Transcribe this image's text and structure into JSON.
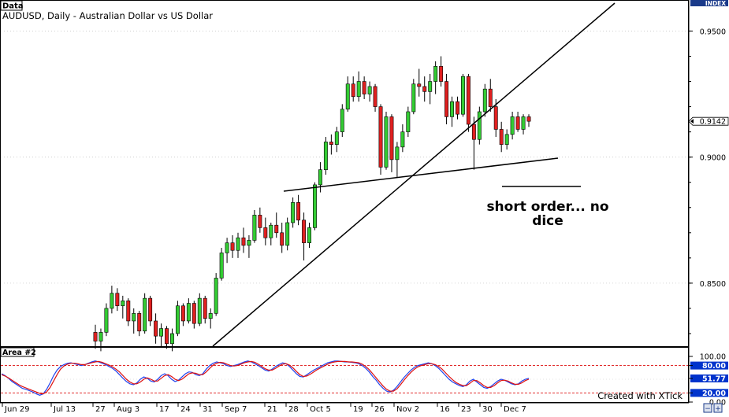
{
  "window": {
    "data_tab": "Data",
    "area_tab": "Area #2",
    "index_label": "INDEX",
    "watermark": "Created with XTick"
  },
  "colors": {
    "up_candle": "#33cc33",
    "down_candle": "#e02020",
    "stoch_k": "#2244ee",
    "stoch_d": "#dd1111",
    "level_line": "#dd1111",
    "price_tag": "#000000",
    "scale_blue_tag": "#0033cc"
  },
  "chart_data": [
    {
      "type": "candlestick",
      "title": "AUDUSD, Daily - Australian Dollar vs US Dollar",
      "ylim": [
        0.825,
        0.962
      ],
      "y_ticks": [
        "0.9500",
        "0.9000",
        "0.8500"
      ],
      "last_price_label": "0.9142",
      "x_tick_labels": [
        "Jun 29",
        "Jul 13",
        "27",
        "Aug 3",
        "17",
        "24",
        "31",
        "Sep 7",
        "21",
        "28",
        "Oct 5",
        "19",
        "26",
        "Nov 2",
        "16",
        "23",
        "30",
        "Dec 7"
      ],
      "candles": [
        [
          0.8305,
          0.8335,
          0.824,
          0.827
        ],
        [
          0.827,
          0.832,
          0.823,
          0.8305
        ],
        [
          0.8305,
          0.842,
          0.829,
          0.84
        ],
        [
          0.84,
          0.849,
          0.838,
          0.846
        ],
        [
          0.846,
          0.848,
          0.839,
          0.841
        ],
        [
          0.841,
          0.845,
          0.836,
          0.843
        ],
        [
          0.843,
          0.844,
          0.833,
          0.835
        ],
        [
          0.835,
          0.84,
          0.83,
          0.838
        ],
        [
          0.838,
          0.839,
          0.829,
          0.831
        ],
        [
          0.831,
          0.846,
          0.83,
          0.844
        ],
        [
          0.844,
          0.845,
          0.833,
          0.835
        ],
        [
          0.835,
          0.838,
          0.826,
          0.829
        ],
        [
          0.829,
          0.834,
          0.825,
          0.832
        ],
        [
          0.832,
          0.833,
          0.824,
          0.826
        ],
        [
          0.826,
          0.832,
          0.823,
          0.83
        ],
        [
          0.83,
          0.843,
          0.829,
          0.841
        ],
        [
          0.841,
          0.842,
          0.833,
          0.835
        ],
        [
          0.835,
          0.844,
          0.834,
          0.842
        ],
        [
          0.842,
          0.843,
          0.832,
          0.834
        ],
        [
          0.834,
          0.846,
          0.833,
          0.844
        ],
        [
          0.844,
          0.845,
          0.834,
          0.836
        ],
        [
          0.836,
          0.84,
          0.832,
          0.838
        ],
        [
          0.838,
          0.854,
          0.837,
          0.852
        ],
        [
          0.852,
          0.864,
          0.851,
          0.862
        ],
        [
          0.862,
          0.868,
          0.858,
          0.866
        ],
        [
          0.866,
          0.869,
          0.86,
          0.863
        ],
        [
          0.863,
          0.87,
          0.86,
          0.868
        ],
        [
          0.868,
          0.872,
          0.862,
          0.865
        ],
        [
          0.865,
          0.869,
          0.86,
          0.867
        ],
        [
          0.867,
          0.879,
          0.866,
          0.877
        ],
        [
          0.877,
          0.88,
          0.87,
          0.872
        ],
        [
          0.872,
          0.876,
          0.865,
          0.868
        ],
        [
          0.868,
          0.874,
          0.865,
          0.873
        ],
        [
          0.873,
          0.878,
          0.868,
          0.87
        ],
        [
          0.87,
          0.874,
          0.862,
          0.865
        ],
        [
          0.865,
          0.876,
          0.863,
          0.874
        ],
        [
          0.874,
          0.884,
          0.872,
          0.882
        ],
        [
          0.882,
          0.885,
          0.873,
          0.875
        ],
        [
          0.875,
          0.878,
          0.859,
          0.866
        ],
        [
          0.866,
          0.874,
          0.864,
          0.872
        ],
        [
          0.872,
          0.89,
          0.871,
          0.889
        ],
        [
          0.889,
          0.898,
          0.886,
          0.895
        ],
        [
          0.895,
          0.908,
          0.893,
          0.906
        ],
        [
          0.906,
          0.909,
          0.901,
          0.905
        ],
        [
          0.905,
          0.912,
          0.902,
          0.91
        ],
        [
          0.91,
          0.921,
          0.908,
          0.919
        ],
        [
          0.919,
          0.932,
          0.918,
          0.929
        ],
        [
          0.929,
          0.932,
          0.922,
          0.924
        ],
        [
          0.924,
          0.934,
          0.922,
          0.93
        ],
        [
          0.93,
          0.932,
          0.923,
          0.925
        ],
        [
          0.925,
          0.93,
          0.922,
          0.928
        ],
        [
          0.928,
          0.929,
          0.918,
          0.92
        ],
        [
          0.92,
          0.921,
          0.893,
          0.896
        ],
        [
          0.896,
          0.918,
          0.895,
          0.916
        ],
        [
          0.916,
          0.917,
          0.894,
          0.899
        ],
        [
          0.899,
          0.906,
          0.892,
          0.904
        ],
        [
          0.904,
          0.913,
          0.902,
          0.91
        ],
        [
          0.91,
          0.92,
          0.908,
          0.918
        ],
        [
          0.918,
          0.931,
          0.917,
          0.929
        ],
        [
          0.929,
          0.935,
          0.924,
          0.928
        ],
        [
          0.928,
          0.932,
          0.922,
          0.926
        ],
        [
          0.926,
          0.933,
          0.921,
          0.93
        ],
        [
          0.93,
          0.938,
          0.925,
          0.936
        ],
        [
          0.936,
          0.94,
          0.928,
          0.93
        ],
        [
          0.93,
          0.933,
          0.913,
          0.916
        ],
        [
          0.916,
          0.924,
          0.912,
          0.922
        ],
        [
          0.922,
          0.924,
          0.915,
          0.917
        ],
        [
          0.917,
          0.933,
          0.916,
          0.932
        ],
        [
          0.932,
          0.933,
          0.91,
          0.913
        ],
        [
          0.913,
          0.916,
          0.895,
          0.907
        ],
        [
          0.907,
          0.92,
          0.905,
          0.918
        ],
        [
          0.918,
          0.929,
          0.916,
          0.927
        ],
        [
          0.927,
          0.931,
          0.918,
          0.92
        ],
        [
          0.92,
          0.923,
          0.908,
          0.911
        ],
        [
          0.911,
          0.914,
          0.902,
          0.905
        ],
        [
          0.905,
          0.911,
          0.903,
          0.909
        ],
        [
          0.909,
          0.918,
          0.907,
          0.916
        ],
        [
          0.916,
          0.918,
          0.91,
          0.911
        ],
        [
          0.911,
          0.917,
          0.909,
          0.916
        ],
        [
          0.916,
          0.917,
          0.912,
          0.9142
        ]
      ],
      "annotation": "short order... no dice"
    },
    {
      "type": "line",
      "name": "Area #2",
      "ylim": [
        0,
        100
      ],
      "y_ticks": [
        "100.00",
        "80.00",
        "51.77",
        "20.00",
        "0.00"
      ],
      "levels": [
        80,
        20
      ],
      "series": [
        {
          "values": [
            62,
            58,
            52,
            45,
            40,
            35,
            30,
            28,
            25,
            22,
            18,
            15,
            18,
            28,
            42,
            58,
            70,
            78,
            82,
            85,
            86,
            84,
            82,
            80,
            82,
            85,
            88,
            90,
            88,
            85,
            82,
            78,
            74,
            68,
            60,
            52,
            45,
            40,
            38,
            42,
            50,
            55,
            52,
            46,
            44,
            50,
            58,
            62,
            58,
            50,
            45,
            48,
            55,
            62,
            66,
            65,
            60,
            58,
            62,
            72,
            80,
            85,
            88,
            86,
            84,
            80,
            78,
            80,
            82,
            85,
            88,
            90,
            88,
            84,
            80,
            75,
            70,
            68,
            72,
            78,
            82,
            86,
            84,
            78,
            70,
            62,
            56,
            55,
            60,
            65,
            70,
            74,
            78,
            82,
            86,
            88,
            90,
            90,
            89,
            88,
            88,
            87,
            86,
            84,
            80,
            74,
            66,
            56,
            48,
            38,
            30,
            24,
            22,
            26,
            34,
            44,
            54,
            62,
            70,
            76,
            80,
            82,
            84,
            86,
            84,
            80,
            74,
            66,
            58,
            50,
            44,
            40,
            36,
            34,
            38,
            46,
            50,
            44,
            38,
            32,
            30,
            34,
            40,
            46,
            50,
            48,
            44,
            40,
            38,
            40,
            46,
            50,
            52
          ]
        },
        {
          "values": [
            60,
            57,
            53,
            48,
            43,
            38,
            34,
            31,
            28,
            25,
            22,
            19,
            18,
            22,
            32,
            46,
            60,
            72,
            79,
            83,
            85,
            85,
            84,
            82,
            82,
            84,
            86,
            88,
            89,
            87,
            84,
            81,
            77,
            72,
            66,
            58,
            50,
            44,
            40,
            40,
            44,
            50,
            53,
            50,
            46,
            46,
            52,
            58,
            60,
            56,
            50,
            47,
            50,
            56,
            62,
            64,
            63,
            60,
            60,
            66,
            74,
            81,
            85,
            87,
            86,
            83,
            80,
            79,
            80,
            83,
            86,
            88,
            89,
            87,
            83,
            78,
            73,
            70,
            70,
            74,
            79,
            83,
            84,
            81,
            75,
            67,
            60,
            56,
            57,
            61,
            66,
            71,
            75,
            79,
            83,
            86,
            88,
            89,
            89,
            89,
            88,
            88,
            87,
            86,
            83,
            78,
            71,
            62,
            53,
            44,
            35,
            28,
            24,
            24,
            29,
            38,
            48,
            57,
            65,
            72,
            77,
            80,
            82,
            84,
            84,
            82,
            78,
            72,
            64,
            56,
            49,
            43,
            39,
            36,
            36,
            41,
            47,
            47,
            42,
            36,
            32,
            32,
            36,
            42,
            47,
            48,
            46,
            42,
            39,
            39,
            42,
            47,
            50
          ]
        }
      ]
    }
  ]
}
